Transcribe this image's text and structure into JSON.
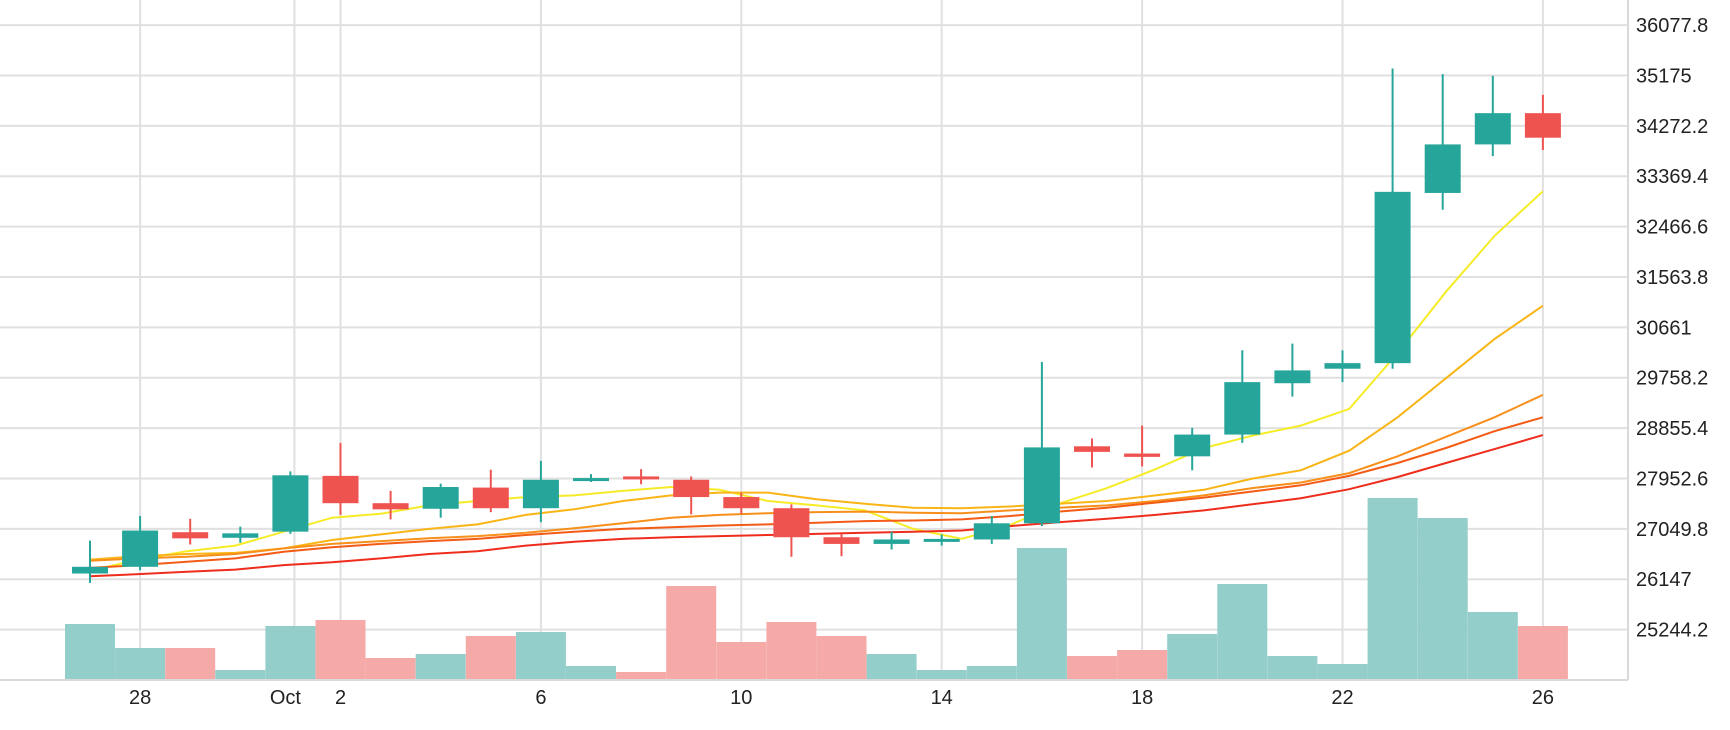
{
  "chart_data": {
    "type": "candlestick",
    "x_tick_labels": [
      {
        "day": 1,
        "label": "28"
      },
      {
        "day": 4,
        "label": "Oct"
      },
      {
        "day": 5,
        "label": "2"
      },
      {
        "day": 9,
        "label": "6"
      },
      {
        "day": 13,
        "label": "10"
      },
      {
        "day": 17,
        "label": "14"
      },
      {
        "day": 21,
        "label": "18"
      },
      {
        "day": 25,
        "label": "22"
      },
      {
        "day": 29,
        "label": "26"
      }
    ],
    "y_tick_labels": [
      "36077.8",
      "35175",
      "34272.2",
      "33369.4",
      "32466.6",
      "31563.8",
      "30661",
      "29758.2",
      "28855.4",
      "27952.6",
      "27049.8",
      "26147",
      "25244.2"
    ],
    "ylim": [
      24341.4,
      36528
    ],
    "volume_max": 100,
    "candles": [
      {
        "day": 0,
        "open": 26250,
        "high": 26840,
        "low": 26080,
        "close": 26370
      },
      {
        "day": 1,
        "open": 26370,
        "high": 27280,
        "low": 26310,
        "close": 27020
      },
      {
        "day": 2,
        "open": 26990,
        "high": 27230,
        "low": 26770,
        "close": 26880
      },
      {
        "day": 3,
        "open": 26890,
        "high": 27090,
        "low": 26800,
        "close": 26970
      },
      {
        "day": 4,
        "open": 27000,
        "high": 28080,
        "low": 26960,
        "close": 28010
      },
      {
        "day": 5,
        "open": 28000,
        "high": 28590,
        "low": 27300,
        "close": 27510
      },
      {
        "day": 6,
        "open": 27510,
        "high": 27730,
        "low": 27220,
        "close": 27400
      },
      {
        "day": 7,
        "open": 27410,
        "high": 27860,
        "low": 27250,
        "close": 27800
      },
      {
        "day": 8,
        "open": 27790,
        "high": 28110,
        "low": 27350,
        "close": 27420
      },
      {
        "day": 9,
        "open": 27420,
        "high": 28270,
        "low": 27170,
        "close": 27930
      },
      {
        "day": 10,
        "open": 27930,
        "high": 28030,
        "low": 27890,
        "close": 27960
      },
      {
        "day": 11,
        "open": 27990,
        "high": 28120,
        "low": 27850,
        "close": 27940
      },
      {
        "day": 12,
        "open": 27930,
        "high": 27990,
        "low": 27310,
        "close": 27620
      },
      {
        "day": 13,
        "open": 27620,
        "high": 27700,
        "low": 27320,
        "close": 27420
      },
      {
        "day": 14,
        "open": 27420,
        "high": 27490,
        "low": 26550,
        "close": 26900
      },
      {
        "day": 15,
        "open": 26900,
        "high": 26960,
        "low": 26560,
        "close": 26780
      },
      {
        "day": 16,
        "open": 26780,
        "high": 27000,
        "low": 26680,
        "close": 26860
      },
      {
        "day": 17,
        "open": 26870,
        "high": 26950,
        "low": 26750,
        "close": 26870
      },
      {
        "day": 18,
        "open": 26860,
        "high": 27280,
        "low": 26780,
        "close": 27150
      },
      {
        "day": 19,
        "open": 27150,
        "high": 30040,
        "low": 27100,
        "close": 28510
      },
      {
        "day": 20,
        "open": 28530,
        "high": 28670,
        "low": 28150,
        "close": 28430
      },
      {
        "day": 21,
        "open": 28400,
        "high": 28900,
        "low": 28170,
        "close": 28340
      },
      {
        "day": 22,
        "open": 28350,
        "high": 28860,
        "low": 28100,
        "close": 28740
      },
      {
        "day": 23,
        "open": 28740,
        "high": 30250,
        "low": 28590,
        "close": 29680
      },
      {
        "day": 24,
        "open": 29660,
        "high": 30370,
        "low": 29420,
        "close": 29890
      },
      {
        "day": 25,
        "open": 29920,
        "high": 30250,
        "low": 29680,
        "close": 30020
      },
      {
        "day": 26,
        "open": 30020,
        "high": 35300,
        "low": 29920,
        "close": 33090
      },
      {
        "day": 27,
        "open": 33070,
        "high": 35200,
        "low": 32770,
        "close": 33940
      },
      {
        "day": 28,
        "open": 33940,
        "high": 35170,
        "low": 33730,
        "close": 34500
      },
      {
        "day": 29,
        "open": 34500,
        "high": 34830,
        "low": 33840,
        "close": 34060
      }
    ],
    "volume": [
      28,
      16,
      16,
      5,
      27,
      30,
      11,
      13,
      22,
      24,
      7,
      4,
      47,
      19,
      29,
      22,
      13,
      5,
      7,
      66,
      12,
      15,
      23,
      48,
      12,
      8,
      91,
      81,
      34,
      27
    ],
    "moving_averages": [
      {
        "color": "#f5ec27",
        "values": [
          26300,
          26500,
          26650,
          26750,
          27000,
          27250,
          27320,
          27470,
          27550,
          27620,
          27650,
          27730,
          27800,
          27750,
          27550,
          27470,
          27380,
          27050,
          26870,
          27120,
          27500,
          27780,
          28120,
          28500,
          28720,
          28900,
          29200,
          30200,
          31300,
          32300,
          33100
        ]
      },
      {
        "color": "#f9b516",
        "values": [
          26500,
          26560,
          26600,
          26620,
          26700,
          26850,
          26950,
          27050,
          27130,
          27300,
          27400,
          27550,
          27650,
          27700,
          27700,
          27580,
          27500,
          27430,
          27420,
          27450,
          27500,
          27550,
          27650,
          27750,
          27950,
          28100,
          28450,
          29050,
          29750,
          30450,
          31050
        ]
      },
      {
        "color": "#f78f1b",
        "values": [
          26480,
          26520,
          26550,
          26600,
          26700,
          26780,
          26830,
          26880,
          26920,
          26980,
          27060,
          27150,
          27250,
          27300,
          27330,
          27350,
          27360,
          27340,
          27330,
          27380,
          27430,
          27470,
          27550,
          27650,
          27780,
          27880,
          28050,
          28350,
          28700,
          29050,
          29450
        ]
      },
      {
        "color": "#f45b16",
        "values": [
          26350,
          26400,
          26460,
          26520,
          26640,
          26720,
          26780,
          26830,
          26870,
          26940,
          27000,
          27050,
          27080,
          27110,
          27130,
          27160,
          27190,
          27200,
          27220,
          27280,
          27360,
          27430,
          27520,
          27610,
          27720,
          27830,
          28000,
          28230,
          28500,
          28800,
          29050
        ]
      },
      {
        "color": "#ee2d1c",
        "values": [
          26200,
          26240,
          26280,
          26320,
          26400,
          26450,
          26520,
          26600,
          26650,
          26750,
          26820,
          26870,
          26900,
          26920,
          26940,
          26960,
          26980,
          27000,
          27020,
          27100,
          27170,
          27230,
          27300,
          27380,
          27490,
          27600,
          27760,
          27980,
          28230,
          28480,
          28730
        ]
      }
    ],
    "colors": {
      "up": "#26a69a",
      "down": "#ef5350",
      "up_volume": "#93cecb",
      "down_volume": "#f5aaa8",
      "grid": "#e0e0e0"
    },
    "grid": true
  }
}
